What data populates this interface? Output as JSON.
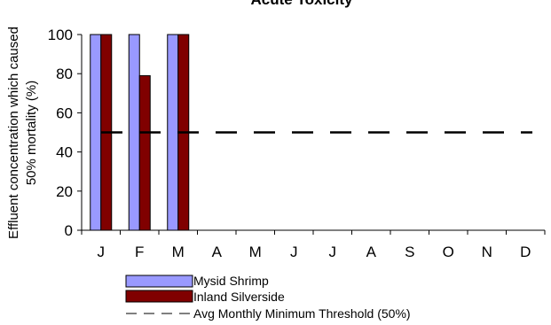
{
  "chart_data": {
    "type": "bar",
    "title": "Acute Toxicity",
    "ylabel_line1": "Effluent concentration which caused",
    "ylabel_line2": "50% mortality (%)",
    "categories": [
      "J",
      "F",
      "M",
      "A",
      "M",
      "J",
      "J",
      "A",
      "S",
      "O",
      "N",
      "D"
    ],
    "ylim": [
      0,
      100
    ],
    "yticks": [
      0,
      20,
      40,
      60,
      80,
      100
    ],
    "series": [
      {
        "name": "Mysid Shrimp",
        "color": "#9999ff",
        "values": [
          100,
          100,
          100,
          null,
          null,
          null,
          null,
          null,
          null,
          null,
          null,
          null
        ]
      },
      {
        "name": "Inland Silverside",
        "color": "#800000",
        "values": [
          100,
          79,
          100,
          null,
          null,
          null,
          null,
          null,
          null,
          null,
          null,
          null
        ]
      }
    ],
    "threshold": {
      "name": "Avg Monthly Minimum Threshold (50%)",
      "value": 50,
      "style": "dashed"
    },
    "legend_position": "bottom-center",
    "grid": false
  }
}
